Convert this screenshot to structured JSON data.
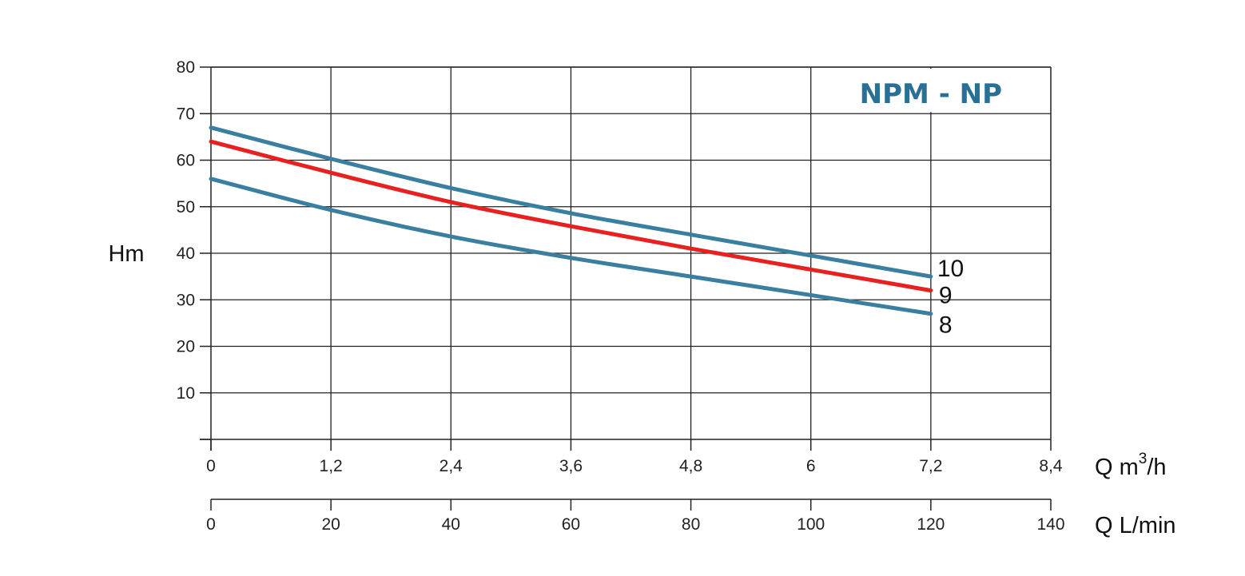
{
  "chart_data": {
    "type": "line",
    "title": "NPM - NP",
    "ylabel": "Hm",
    "xlabel": "Q m3/h",
    "xlabel_main": "Q m",
    "xlabel_sup": "3",
    "xlabel_tail": "/h",
    "x2label": "Q L/min",
    "xlim": [
      0,
      8.4
    ],
    "ylim": [
      0,
      80
    ],
    "x2lim": [
      0,
      140
    ],
    "grid": true,
    "x_ticks": [
      {
        "value": 0,
        "label": "0"
      },
      {
        "value": 1.2,
        "label": "1,2"
      },
      {
        "value": 2.4,
        "label": "2,4"
      },
      {
        "value": 3.6,
        "label": "3,6"
      },
      {
        "value": 4.8,
        "label": "4,8"
      },
      {
        "value": 6,
        "label": "6"
      },
      {
        "value": 7.2,
        "label": "7,2"
      },
      {
        "value": 8.4,
        "label": "8,4"
      }
    ],
    "y_ticks": [
      {
        "value": 10,
        "label": "10"
      },
      {
        "value": 20,
        "label": "20"
      },
      {
        "value": 30,
        "label": "30"
      },
      {
        "value": 40,
        "label": "40"
      },
      {
        "value": 50,
        "label": "50"
      },
      {
        "value": 60,
        "label": "60"
      },
      {
        "value": 70,
        "label": "70"
      },
      {
        "value": 80,
        "label": "80"
      }
    ],
    "x2_ticks": [
      {
        "value": 0,
        "label": "0"
      },
      {
        "value": 20,
        "label": "20"
      },
      {
        "value": 40,
        "label": "40"
      },
      {
        "value": 60,
        "label": "60"
      },
      {
        "value": 80,
        "label": "80"
      },
      {
        "value": 100,
        "label": "100"
      },
      {
        "value": 120,
        "label": "120"
      },
      {
        "value": 140,
        "label": "140"
      }
    ],
    "x": [
      0,
      1.2,
      2.4,
      3.6,
      4.8,
      6,
      7.2
    ],
    "series": [
      {
        "name": "10",
        "color": "#3a7ea0",
        "values": [
          67,
          60.3,
          54,
          48.6,
          44,
          39.5,
          35
        ]
      },
      {
        "name": "9",
        "color": "#e8201f",
        "values": [
          64,
          57.3,
          51,
          45.8,
          41,
          36.5,
          32
        ]
      },
      {
        "name": "8",
        "color": "#3a7ea0",
        "values": [
          56,
          49.3,
          43.6,
          39,
          35,
          31,
          27
        ]
      }
    ]
  }
}
